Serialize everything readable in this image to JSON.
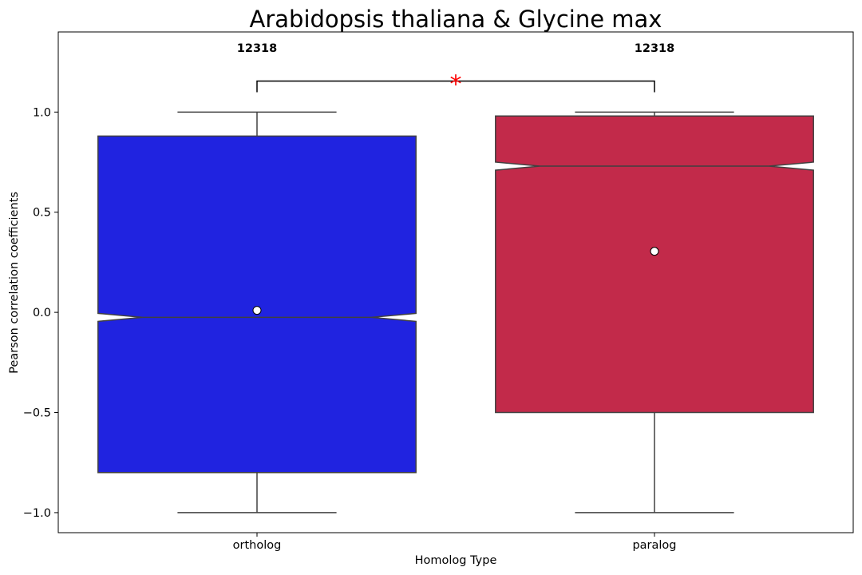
{
  "chart_data": {
    "type": "boxplot",
    "title": "Arabidopsis thaliana & Glycine max",
    "xlabel": "Homolog Type",
    "ylabel": "Pearson correlation coefficients",
    "ylim": [
      -1.1,
      1.4
    ],
    "yticks": [
      -1.0,
      -0.5,
      0.0,
      0.5,
      1.0
    ],
    "ytick_labels": [
      "−1.0",
      "−0.5",
      "0.0",
      "0.5",
      "1.0"
    ],
    "grid": false,
    "notched": true,
    "categories": [
      "ortholog",
      "paralog"
    ],
    "boxes": [
      {
        "name": "ortholog",
        "color": "#2023e0",
        "whisker_low": -1.0,
        "q1": -0.8,
        "median": -0.025,
        "q3": 0.88,
        "whisker_high": 1.0,
        "notch_low": -0.045,
        "notch_high": -0.005,
        "mean": 0.01,
        "count_label": "12318"
      },
      {
        "name": "paralog",
        "color": "#c22a4a",
        "whisker_low": -1.0,
        "q1": -0.5,
        "median": 0.73,
        "q3": 0.98,
        "whisker_high": 1.0,
        "notch_low": 0.71,
        "notch_high": 0.75,
        "mean": 0.305,
        "count_label": "12318"
      }
    ],
    "significance": {
      "label": "*",
      "color": "#ff0000",
      "y": 1.155,
      "from": "ortholog",
      "to": "paralog"
    }
  }
}
